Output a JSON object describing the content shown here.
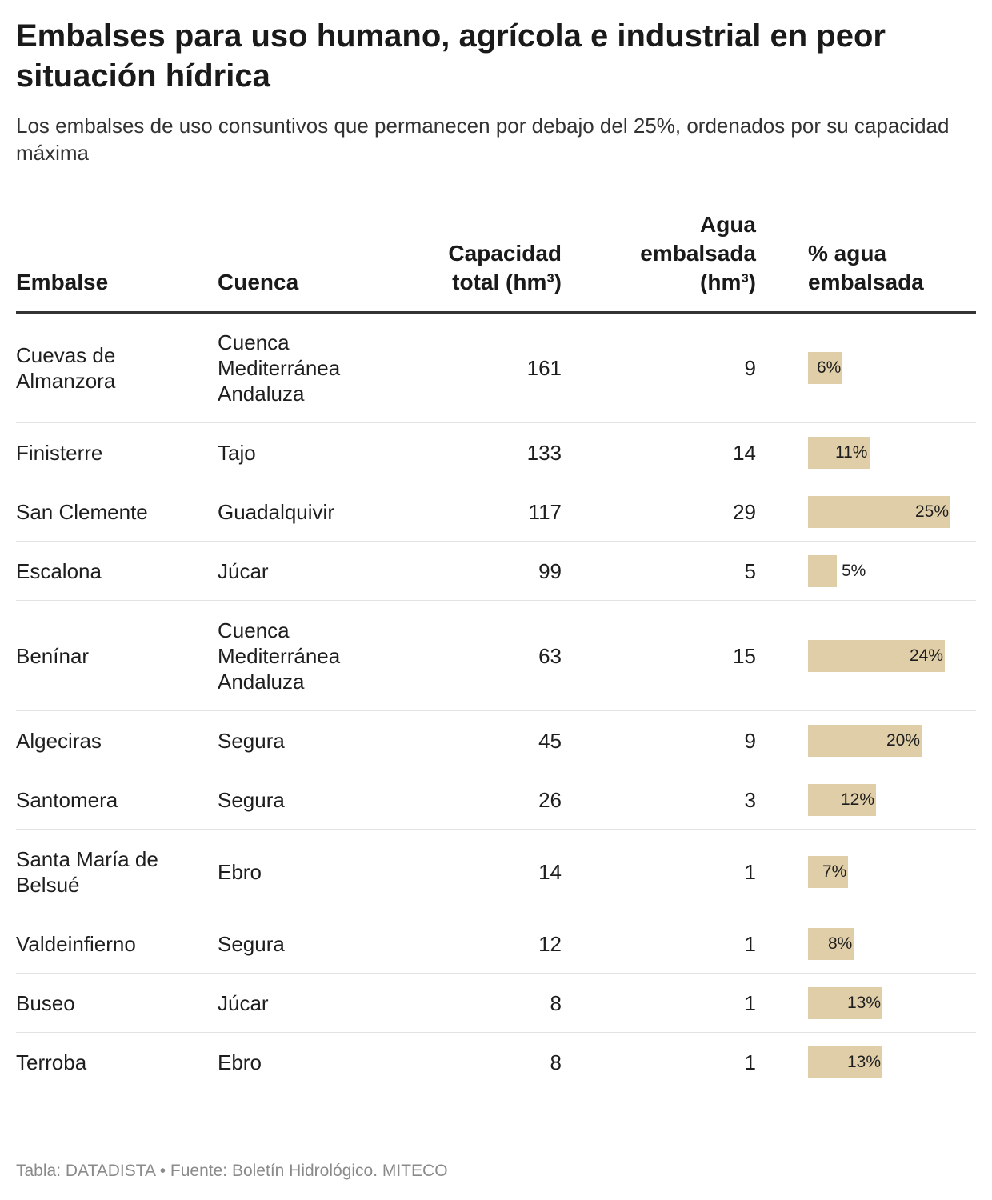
{
  "title": "Embalses para uso humano, agrícola e industrial en peor situación hídrica",
  "subtitle": "Los embalses de uso consuntivos que permanecen por debajo del 25%, ordenados por su capacidad máxima",
  "columns": {
    "embalse": "Embalse",
    "cuenca": "Cuenca",
    "capacidad": "Capacidad total (hm³)",
    "agua": "Agua embalsada (hm³)",
    "pct": "% agua embalsada"
  },
  "footer": "Tabla: DATADISTA • Fuente: Boletín Hidrológico. MITECO",
  "colors": {
    "bar": "#e0cea8",
    "header_rule": "#333333",
    "row_rule": "#e3e3e3"
  },
  "chart_data": {
    "type": "table",
    "bar_max_percent": 25,
    "rows": [
      {
        "embalse": "Cuevas de Almanzora",
        "cuenca": "Cuenca Mediterránea Andaluza",
        "capacidad": 161,
        "agua": 9,
        "pct": 6,
        "pct_label": "6%"
      },
      {
        "embalse": "Finisterre",
        "cuenca": "Tajo",
        "capacidad": 133,
        "agua": 14,
        "pct": 11,
        "pct_label": "11%"
      },
      {
        "embalse": "San Clemente",
        "cuenca": "Guadalquivir",
        "capacidad": 117,
        "agua": 29,
        "pct": 25,
        "pct_label": "25%"
      },
      {
        "embalse": "Escalona",
        "cuenca": "Júcar",
        "capacidad": 99,
        "agua": 5,
        "pct": 5,
        "pct_label": "5%"
      },
      {
        "embalse": "Benínar",
        "cuenca": "Cuenca Mediterránea Andaluza",
        "capacidad": 63,
        "agua": 15,
        "pct": 24,
        "pct_label": "24%"
      },
      {
        "embalse": "Algeciras",
        "cuenca": "Segura",
        "capacidad": 45,
        "agua": 9,
        "pct": 20,
        "pct_label": "20%"
      },
      {
        "embalse": "Santomera",
        "cuenca": "Segura",
        "capacidad": 26,
        "agua": 3,
        "pct": 12,
        "pct_label": "12%"
      },
      {
        "embalse": "Santa María de Belsué",
        "cuenca": "Ebro",
        "capacidad": 14,
        "agua": 1,
        "pct": 7,
        "pct_label": "7%"
      },
      {
        "embalse": "Valdeinfierno",
        "cuenca": "Segura",
        "capacidad": 12,
        "agua": 1,
        "pct": 8,
        "pct_label": "8%"
      },
      {
        "embalse": "Buseo",
        "cuenca": "Júcar",
        "capacidad": 8,
        "agua": 1,
        "pct": 13,
        "pct_label": "13%"
      },
      {
        "embalse": "Terroba",
        "cuenca": "Ebro",
        "capacidad": 8,
        "agua": 1,
        "pct": 13,
        "pct_label": "13%"
      }
    ]
  }
}
